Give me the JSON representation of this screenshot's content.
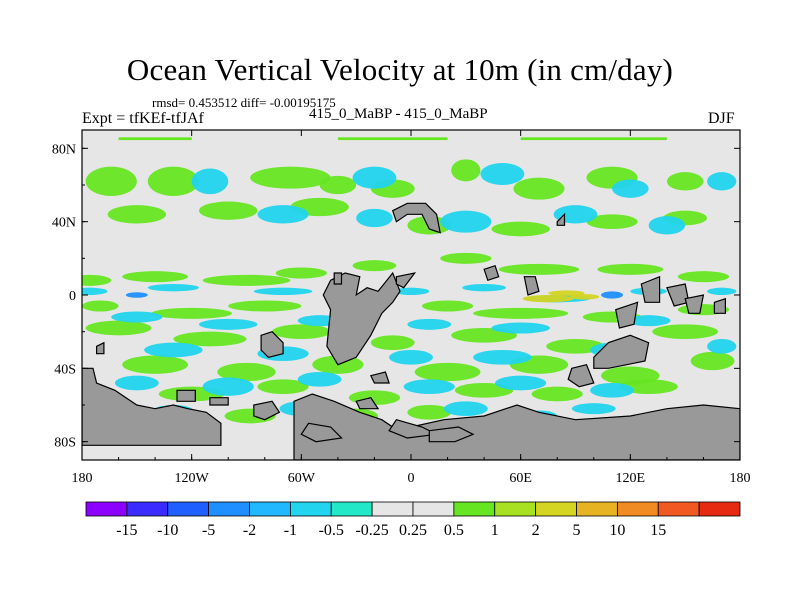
{
  "header": {
    "title": "Ocean Vertical Velocity at 10m (in cm/day)",
    "stats": "rmsd= 0.453512 diff= -0.00195175",
    "expt": "Expt = tfKEf-tfJAf",
    "runs": "415_0_MaBP - 415_0_MaBP",
    "season": "DJF"
  },
  "map": {
    "projection": "cylindrical equidistant",
    "lon_range": [
      -180,
      180
    ],
    "lat_range": [
      -90,
      90
    ],
    "x_ticks": [
      {
        "value": -180,
        "label": "180"
      },
      {
        "value": -120,
        "label": "120W"
      },
      {
        "value": -60,
        "label": "60W"
      },
      {
        "value": 0,
        "label": "0"
      },
      {
        "value": 60,
        "label": "60E"
      },
      {
        "value": 120,
        "label": "120E"
      },
      {
        "value": 180,
        "label": "180"
      }
    ],
    "y_ticks": [
      {
        "value": 80,
        "label": "80N"
      },
      {
        "value": 40,
        "label": "40N"
      },
      {
        "value": 0,
        "label": "0"
      },
      {
        "value": -40,
        "label": "40S"
      },
      {
        "value": -80,
        "label": "80S"
      }
    ],
    "colors": {
      "background": "#e6e6e6",
      "land": "#999999",
      "land_outline": "#000000"
    },
    "land": [
      [
        [
          -180,
          -40
        ],
        [
          -174,
          -40
        ],
        [
          -172,
          -48
        ],
        [
          -162,
          -52
        ],
        [
          -150,
          -60
        ],
        [
          -140,
          -62
        ],
        [
          -130,
          -60
        ],
        [
          -122,
          -62
        ],
        [
          -112,
          -64
        ],
        [
          -104,
          -70
        ],
        [
          -104,
          -82
        ],
        [
          -180,
          -82
        ]
      ],
      [
        [
          -172,
          -28
        ],
        [
          -168,
          -26
        ],
        [
          -168,
          -32
        ],
        [
          -172,
          -32
        ]
      ],
      [
        [
          -128,
          -52
        ],
        [
          -118,
          -52
        ],
        [
          -118,
          -58
        ],
        [
          -128,
          -58
        ]
      ],
      [
        [
          -110,
          -56
        ],
        [
          -100,
          -56
        ],
        [
          -100,
          -60
        ],
        [
          -110,
          -60
        ]
      ],
      [
        [
          -86,
          -60
        ],
        [
          -76,
          -58
        ],
        [
          -72,
          -64
        ],
        [
          -80,
          -68
        ],
        [
          -86,
          -66
        ]
      ],
      [
        [
          -82,
          -22
        ],
        [
          -76,
          -20
        ],
        [
          -70,
          -26
        ],
        [
          -70,
          -32
        ],
        [
          -78,
          -34
        ],
        [
          -82,
          -30
        ]
      ],
      [
        [
          -44,
          8
        ],
        [
          -36,
          12
        ],
        [
          -28,
          10
        ],
        [
          -30,
          0
        ],
        [
          -24,
          4
        ],
        [
          -18,
          2
        ],
        [
          -10,
          12
        ],
        [
          -6,
          2
        ],
        [
          -10,
          -4
        ],
        [
          -16,
          -10
        ],
        [
          -22,
          -22
        ],
        [
          -30,
          -34
        ],
        [
          -40,
          -38
        ],
        [
          -46,
          -28
        ],
        [
          -44,
          -8
        ],
        [
          -48,
          0
        ]
      ],
      [
        [
          -42,
          12
        ],
        [
          -38,
          12
        ],
        [
          -38,
          6
        ],
        [
          -42,
          6
        ]
      ],
      [
        [
          -10,
          46
        ],
        [
          -2,
          50
        ],
        [
          8,
          50
        ],
        [
          14,
          44
        ],
        [
          16,
          34
        ],
        [
          10,
          36
        ],
        [
          6,
          44
        ],
        [
          -2,
          44
        ],
        [
          -8,
          40
        ]
      ],
      [
        [
          -8,
          10
        ],
        [
          2,
          12
        ],
        [
          -4,
          4
        ],
        [
          -8,
          6
        ]
      ],
      [
        [
          -64,
          -58
        ],
        [
          -54,
          -54
        ],
        [
          -42,
          -58
        ],
        [
          -28,
          -64
        ],
        [
          -16,
          -68
        ],
        [
          -10,
          -72
        ],
        [
          0,
          -72
        ],
        [
          18,
          -68
        ],
        [
          40,
          -66
        ],
        [
          58,
          -60
        ],
        [
          70,
          -64
        ],
        [
          90,
          -68
        ],
        [
          120,
          -66
        ],
        [
          140,
          -62
        ],
        [
          160,
          -60
        ],
        [
          180,
          -62
        ],
        [
          180,
          -90
        ],
        [
          -64,
          -90
        ]
      ],
      [
        [
          -8,
          -68
        ],
        [
          6,
          -72
        ],
        [
          14,
          -76
        ],
        [
          -2,
          -78
        ],
        [
          -12,
          -74
        ]
      ],
      [
        [
          10,
          -74
        ],
        [
          26,
          -72
        ],
        [
          34,
          -76
        ],
        [
          24,
          -80
        ],
        [
          10,
          -80
        ]
      ],
      [
        [
          -56,
          -70
        ],
        [
          -44,
          -72
        ],
        [
          -38,
          -78
        ],
        [
          -52,
          -80
        ],
        [
          -60,
          -76
        ]
      ],
      [
        [
          40,
          14
        ],
        [
          46,
          16
        ],
        [
          48,
          10
        ],
        [
          42,
          8
        ]
      ],
      [
        [
          62,
          10
        ],
        [
          68,
          10
        ],
        [
          70,
          2
        ],
        [
          64,
          0
        ]
      ],
      [
        [
          -22,
          -44
        ],
        [
          -14,
          -42
        ],
        [
          -12,
          -48
        ],
        [
          -20,
          -48
        ]
      ],
      [
        [
          -30,
          -58
        ],
        [
          -22,
          -56
        ],
        [
          -18,
          -62
        ],
        [
          -28,
          -62
        ]
      ],
      [
        [
          88,
          -40
        ],
        [
          96,
          -38
        ],
        [
          100,
          -48
        ],
        [
          92,
          -50
        ],
        [
          86,
          -46
        ]
      ],
      [
        [
          100,
          -34
        ],
        [
          108,
          -26
        ],
        [
          120,
          -22
        ],
        [
          130,
          -26
        ],
        [
          128,
          -36
        ],
        [
          118,
          -38
        ],
        [
          108,
          -40
        ],
        [
          100,
          -40
        ]
      ],
      [
        [
          112,
          -8
        ],
        [
          124,
          -4
        ],
        [
          122,
          -16
        ],
        [
          114,
          -18
        ]
      ],
      [
        [
          126,
          6
        ],
        [
          136,
          10
        ],
        [
          136,
          -4
        ],
        [
          128,
          -4
        ]
      ],
      [
        [
          140,
          4
        ],
        [
          150,
          6
        ],
        [
          152,
          -4
        ],
        [
          144,
          -6
        ]
      ],
      [
        [
          150,
          -2
        ],
        [
          160,
          0
        ],
        [
          158,
          -10
        ],
        [
          152,
          -10
        ]
      ],
      [
        [
          166,
          -4
        ],
        [
          172,
          -2
        ],
        [
          172,
          -10
        ],
        [
          166,
          -10
        ]
      ],
      [
        [
          80,
          40
        ],
        [
          84,
          44
        ],
        [
          84,
          38
        ],
        [
          80,
          38
        ]
      ]
    ],
    "positive_patches": [
      [
        -164,
        62,
        14,
        8
      ],
      [
        -130,
        62,
        14,
        8
      ],
      [
        -66,
        64,
        22,
        6
      ],
      [
        -40,
        60,
        10,
        5
      ],
      [
        -10,
        58,
        12,
        5
      ],
      [
        30,
        68,
        8,
        6
      ],
      [
        70,
        58,
        14,
        6
      ],
      [
        110,
        64,
        14,
        6
      ],
      [
        150,
        62,
        10,
        5
      ],
      [
        -150,
        44,
        16,
        5
      ],
      [
        -100,
        46,
        16,
        5
      ],
      [
        -50,
        48,
        16,
        5
      ],
      [
        10,
        38,
        12,
        5
      ],
      [
        60,
        36,
        16,
        4
      ],
      [
        110,
        40,
        14,
        4
      ],
      [
        150,
        42,
        12,
        4
      ],
      [
        -176,
        8,
        12,
        3
      ],
      [
        -140,
        10,
        18,
        3
      ],
      [
        -90,
        8,
        24,
        3
      ],
      [
        -60,
        12,
        14,
        3
      ],
      [
        -20,
        16,
        12,
        3
      ],
      [
        30,
        20,
        14,
        3
      ],
      [
        70,
        14,
        22,
        3
      ],
      [
        120,
        14,
        18,
        3
      ],
      [
        160,
        10,
        14,
        3
      ],
      [
        -170,
        -6,
        10,
        3
      ],
      [
        -120,
        -10,
        22,
        3
      ],
      [
        -80,
        -6,
        20,
        3
      ],
      [
        -30,
        -12,
        12,
        3
      ],
      [
        20,
        -6,
        14,
        3
      ],
      [
        60,
        -10,
        26,
        3
      ],
      [
        110,
        -12,
        16,
        3
      ],
      [
        160,
        -8,
        14,
        3
      ],
      [
        -160,
        -18,
        18,
        4
      ],
      [
        -110,
        -24,
        20,
        4
      ],
      [
        -60,
        -20,
        16,
        4
      ],
      [
        -10,
        -26,
        12,
        4
      ],
      [
        40,
        -22,
        18,
        4
      ],
      [
        90,
        -28,
        16,
        4
      ],
      [
        150,
        -20,
        18,
        4
      ],
      [
        -140,
        -38,
        18,
        5
      ],
      [
        -90,
        -42,
        16,
        5
      ],
      [
        -40,
        -38,
        14,
        5
      ],
      [
        20,
        -42,
        18,
        5
      ],
      [
        70,
        -38,
        16,
        5
      ],
      [
        120,
        -44,
        16,
        5
      ],
      [
        165,
        -36,
        12,
        5
      ],
      [
        -120,
        -54,
        18,
        4
      ],
      [
        -70,
        -50,
        14,
        4
      ],
      [
        -20,
        -56,
        14,
        4
      ],
      [
        40,
        -52,
        16,
        4
      ],
      [
        80,
        -54,
        14,
        4
      ],
      [
        130,
        -50,
        16,
        4
      ],
      [
        -88,
        -66,
        14,
        4
      ],
      [
        -30,
        -66,
        12,
        4
      ],
      [
        10,
        -64,
        12,
        4
      ]
    ],
    "negative_patches": [
      [
        -110,
        62,
        10,
        7
      ],
      [
        -20,
        64,
        12,
        6
      ],
      [
        50,
        66,
        12,
        6
      ],
      [
        120,
        58,
        10,
        5
      ],
      [
        170,
        62,
        8,
        5
      ],
      [
        -70,
        44,
        14,
        5
      ],
      [
        -20,
        42,
        10,
        5
      ],
      [
        30,
        40,
        14,
        6
      ],
      [
        90,
        44,
        12,
        5
      ],
      [
        140,
        38,
        10,
        5
      ],
      [
        -176,
        2,
        10,
        2
      ],
      [
        -130,
        4,
        14,
        2
      ],
      [
        -70,
        2,
        16,
        2
      ],
      [
        0,
        2,
        10,
        2
      ],
      [
        40,
        4,
        12,
        2
      ],
      [
        80,
        -2,
        18,
        2
      ],
      [
        130,
        2,
        10,
        2
      ],
      [
        170,
        2,
        8,
        2
      ],
      [
        -150,
        -12,
        14,
        3
      ],
      [
        -100,
        -16,
        16,
        3
      ],
      [
        -50,
        -14,
        12,
        3
      ],
      [
        10,
        -16,
        12,
        3
      ],
      [
        60,
        -18,
        16,
        3
      ],
      [
        130,
        -14,
        12,
        3
      ],
      [
        -130,
        -30,
        16,
        4
      ],
      [
        -70,
        -32,
        14,
        4
      ],
      [
        0,
        -34,
        12,
        4
      ],
      [
        50,
        -34,
        16,
        4
      ],
      [
        110,
        -30,
        12,
        4
      ],
      [
        170,
        -28,
        8,
        4
      ],
      [
        -150,
        -48,
        12,
        4
      ],
      [
        -100,
        -50,
        14,
        5
      ],
      [
        -50,
        -46,
        12,
        4
      ],
      [
        10,
        -50,
        14,
        4
      ],
      [
        60,
        -48,
        14,
        4
      ],
      [
        110,
        -52,
        12,
        4
      ],
      [
        -130,
        -64,
        12,
        4
      ],
      [
        -60,
        -62,
        12,
        4
      ],
      [
        30,
        -62,
        12,
        4
      ],
      [
        70,
        -66,
        10,
        3
      ],
      [
        100,
        -62,
        12,
        3
      ]
    ],
    "strong_positive": [
      [
        75,
        -2,
        14,
        2
      ],
      [
        85,
        1,
        10,
        1.5
      ],
      [
        95,
        -1,
        8,
        1.5
      ]
    ],
    "strong_negative": [
      [
        110,
        0,
        6,
        2
      ],
      [
        -150,
        0,
        6,
        1.5
      ]
    ],
    "polar_band": [
      [
        -160,
        86,
        40,
        1.5
      ],
      [
        -40,
        86,
        60,
        1.5
      ],
      [
        60,
        86,
        80,
        1.5
      ]
    ]
  },
  "colorbar": {
    "colors": [
      "#8b00ff",
      "#3b2bff",
      "#1f5fff",
      "#1f8fff",
      "#22b8ff",
      "#22d4ee",
      "#22e8c8",
      "#e6e6e6",
      "#e6e6e6",
      "#66e622",
      "#a8e022",
      "#d4d422",
      "#e6b422",
      "#f08a22",
      "#f05a22",
      "#e62a12"
    ],
    "labels": [
      "-15",
      "-10",
      "-5",
      "-2",
      "-1",
      "-0.5",
      "-0.25",
      "0.25",
      "0.5",
      "1",
      "2",
      "5",
      "10",
      "15"
    ]
  }
}
